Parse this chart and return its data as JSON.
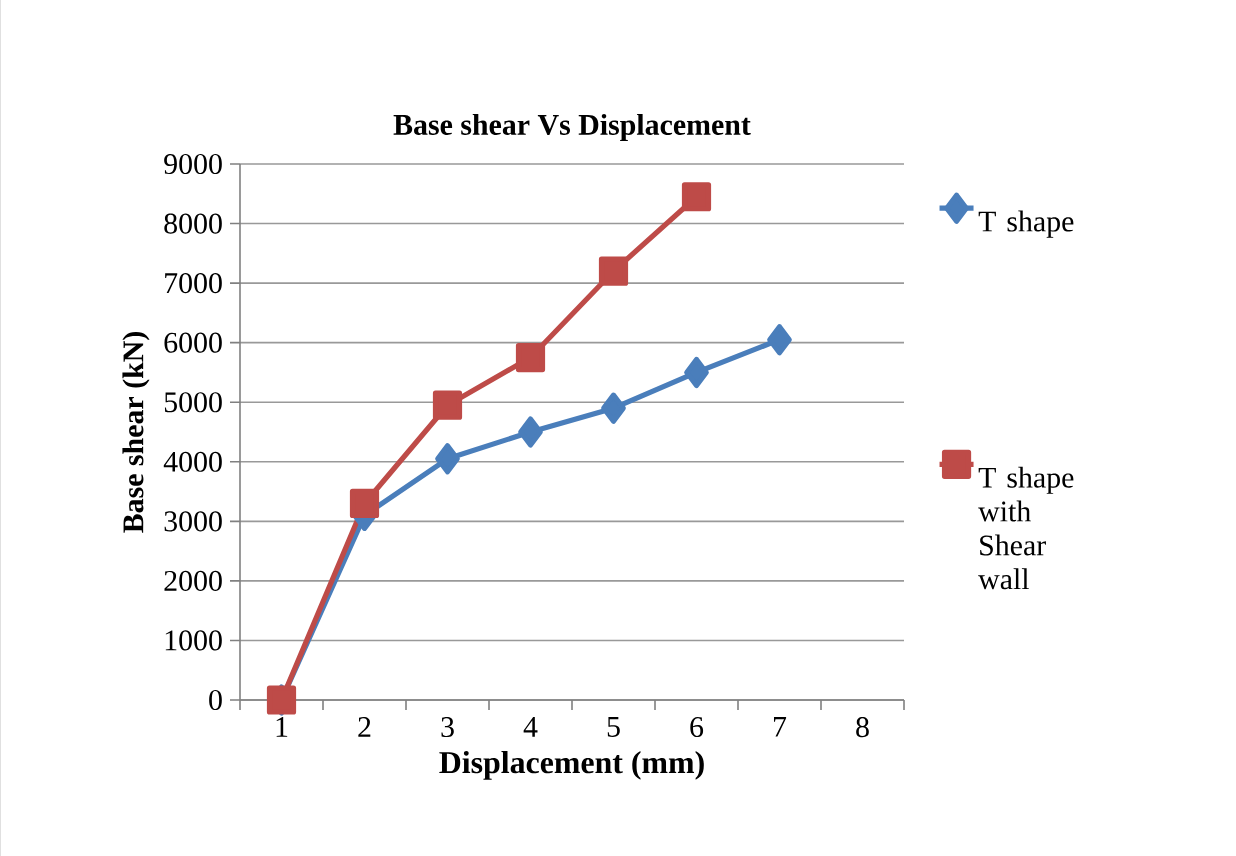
{
  "chart_data": {
    "type": "line",
    "title": "Base shear Vs Displacement",
    "xlabel": "Displacement (mm)",
    "ylabel": "Base shear (kN)",
    "categories": [
      "1",
      "2",
      "3",
      "4",
      "5",
      "6",
      "7",
      "8"
    ],
    "series": [
      {
        "name": "T shape",
        "color": "#4a7ebb",
        "marker": "diamond",
        "values": [
          0,
          3100,
          4050,
          4500,
          4900,
          5500,
          6050,
          null
        ]
      },
      {
        "name": "T shape with Shear wall",
        "color": "#be4b48",
        "marker": "square",
        "values": [
          0,
          3300,
          4950,
          5750,
          7200,
          8450,
          null,
          null
        ]
      }
    ],
    "ylim": [
      0,
      9000
    ],
    "yticks": [
      0,
      1000,
      2000,
      3000,
      4000,
      5000,
      6000,
      7000,
      8000,
      9000
    ],
    "grid": "y",
    "legend": "right"
  }
}
